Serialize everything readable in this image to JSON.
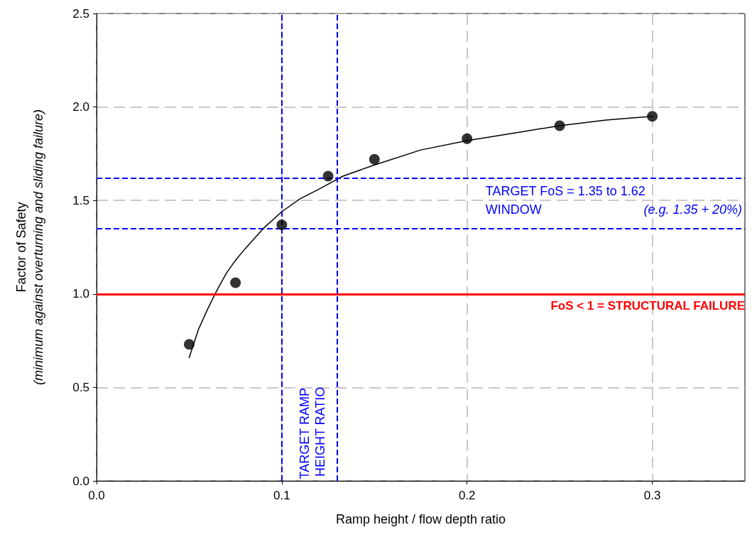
{
  "chart_data": {
    "type": "scatter",
    "xlabel": "Ramp height / flow depth ratio",
    "ylabel": "Factor of Safety\n(minimum against overturning and sliding failure)",
    "x": [
      0.05,
      0.075,
      0.1,
      0.125,
      0.15,
      0.2,
      0.25,
      0.3
    ],
    "series": [
      {
        "color": "#000000",
        "marker": "circle",
        "values": [
          0.73,
          1.06,
          1.37,
          1.63,
          1.72,
          1.83,
          1.9,
          1.95
        ]
      },
      {
        "type": "line",
        "color": "#000000",
        "marker": "none",
        "line_style": "solid",
        "x": [
          0.05,
          0.055,
          0.06,
          0.065,
          0.07,
          0.075,
          0.08,
          0.09,
          0.1,
          0.11,
          0.12,
          0.133,
          0.15,
          0.175,
          0.2,
          0.225,
          0.25,
          0.275,
          0.3
        ],
        "values": [
          0.66,
          0.81,
          0.92,
          1.02,
          1.11,
          1.18,
          1.24,
          1.35,
          1.44,
          1.51,
          1.56,
          1.63,
          1.69,
          1.77,
          1.82,
          1.86,
          1.9,
          1.93,
          1.95
        ]
      }
    ],
    "xlim": [
      0,
      0.35
    ],
    "xticks": [
      {
        "value": 0,
        "label": "0.0"
      },
      0.1,
      0.2,
      0.3
    ],
    "ylim": [
      0,
      2.5
    ],
    "yticks": [
      {
        "value": 0,
        "label": "0.0"
      },
      0.5,
      {
        "value": 1,
        "label": "1.0"
      },
      1.5,
      {
        "value": 2,
        "label": "2.0"
      },
      2.5
    ],
    "grid": true,
    "ref_lines": [
      {
        "axis": "y",
        "value": 1,
        "label": "FoS < 1 = STRUCTURAL FAILURE",
        "color": "#ff0000",
        "line_style": "solid"
      },
      {
        "axis": "y",
        "value": 1.35,
        "color": "#0000ff",
        "line_style": "dashed"
      },
      {
        "axis": "y",
        "value": 1.62,
        "color": "#0000ff",
        "line_style": "dashed"
      },
      {
        "axis": "x",
        "value": 0.1,
        "color": "#0000ff",
        "line_style": "dashed"
      },
      {
        "axis": "x",
        "value": 0.13,
        "color": "#0000ff",
        "line_style": "dashed"
      }
    ],
    "annotations": [
      "TARGET FoS = 1.35 to 1.62",
      "WINDOW",
      "(e.g. 1.35 + 20%)",
      "TARGET RAMP HEIGHT RATIO"
    ]
  }
}
